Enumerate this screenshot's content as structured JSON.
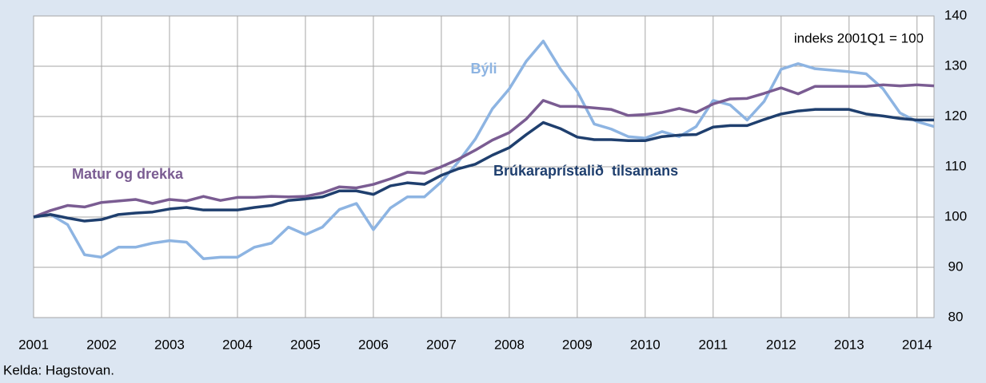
{
  "chart_data": {
    "type": "line",
    "note": "indeks 2001Q1 = 100",
    "source": "Kelda: Hagstovan.",
    "x": [
      2001,
      2001.25,
      2001.5,
      2001.75,
      2002,
      2002.25,
      2002.5,
      2002.75,
      2003,
      2003.25,
      2003.5,
      2003.75,
      2004,
      2004.25,
      2004.5,
      2004.75,
      2005,
      2005.25,
      2005.5,
      2005.75,
      2006,
      2006.25,
      2006.5,
      2006.75,
      2007,
      2007.25,
      2007.5,
      2007.75,
      2008,
      2008.25,
      2008.5,
      2008.75,
      2009,
      2009.25,
      2009.5,
      2009.75,
      2010,
      2010.25,
      2010.5,
      2010.75,
      2011,
      2011.25,
      2011.5,
      2011.75,
      2012,
      2012.25,
      2012.5,
      2012.75,
      2013,
      2013.25,
      2013.5,
      2013.75,
      2014,
      2014.25
    ],
    "series": [
      {
        "name": "Býli",
        "color": "#8db4e2",
        "values": [
          100,
          100.5,
          98.5,
          92.5,
          92,
          94,
          94,
          94.8,
          95.3,
          95,
          91.7,
          92,
          92,
          94,
          94.8,
          98,
          96.5,
          98,
          101.5,
          102.7,
          97.5,
          101.8,
          104,
          104,
          107,
          111,
          115.5,
          121.5,
          125.5,
          131,
          135,
          129.5,
          125,
          118.5,
          117.5,
          116,
          115.7,
          117,
          116,
          118,
          123.2,
          122.3,
          119.3,
          123,
          129.4,
          130.5,
          129.5,
          129.2,
          128.9,
          128.5,
          125.5,
          120.7,
          119,
          118
        ]
      },
      {
        "name": "Matur og drekka",
        "color": "#7a5c92",
        "values": [
          100,
          101.3,
          102.3,
          102,
          102.9,
          103.2,
          103.5,
          102.7,
          103.5,
          103.2,
          104.1,
          103.3,
          103.9,
          103.9,
          104.1,
          104,
          104.1,
          104.8,
          106,
          105.8,
          106.5,
          107.6,
          108.9,
          108.7,
          110,
          111.5,
          113.3,
          115.3,
          116.8,
          119.5,
          123.2,
          122,
          122,
          121.7,
          121.4,
          120.2,
          120.4,
          120.8,
          121.6,
          120.8,
          122.5,
          123.5,
          123.6,
          124.6,
          125.7,
          124.5,
          126,
          126,
          126,
          126,
          126.3,
          126.1,
          126.3,
          126.1
        ]
      },
      {
        "name": "Brúkaraprístalið  tilsamans",
        "color": "#1f3f6e",
        "values": [
          100,
          100.5,
          99.8,
          99.2,
          99.5,
          100.5,
          100.8,
          101,
          101.6,
          101.9,
          101.4,
          101.4,
          101.4,
          101.9,
          102.3,
          103.3,
          103.6,
          104,
          105.2,
          105.2,
          104.5,
          106.2,
          106.8,
          106.5,
          108.3,
          109.6,
          110.5,
          112.3,
          113.8,
          116.4,
          118.8,
          117.6,
          115.9,
          115.4,
          115.4,
          115.2,
          115.2,
          116,
          116.3,
          116.4,
          117.9,
          118.2,
          118.2,
          119.4,
          120.5,
          121.1,
          121.4,
          121.4,
          121.4,
          120.5,
          120.1,
          119.6,
          119.3,
          119.3
        ]
      }
    ],
    "xlim": [
      2001,
      2014.25
    ],
    "xticks": [
      2001,
      2002,
      2003,
      2004,
      2005,
      2006,
      2007,
      2008,
      2009,
      2010,
      2011,
      2012,
      2013,
      2014
    ],
    "ylim": [
      80,
      140
    ],
    "yticks": [
      80,
      90,
      100,
      110,
      120,
      130,
      140
    ],
    "grid": true
  }
}
